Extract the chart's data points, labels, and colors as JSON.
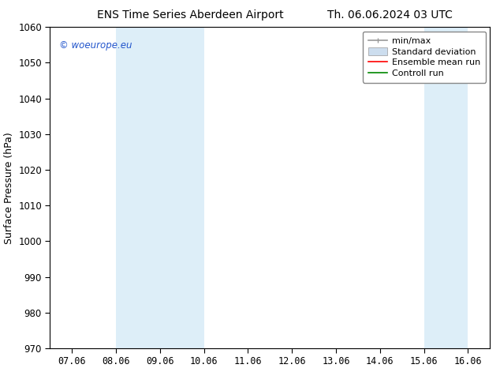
{
  "title_left": "ENS Time Series Aberdeen Airport",
  "title_right": "Th. 06.06.2024 03 UTC",
  "ylabel": "Surface Pressure (hPa)",
  "ylim": [
    970,
    1060
  ],
  "yticks": [
    970,
    980,
    990,
    1000,
    1010,
    1020,
    1030,
    1040,
    1050,
    1060
  ],
  "xtick_labels": [
    "07.06",
    "08.06",
    "09.06",
    "10.06",
    "11.06",
    "12.06",
    "13.06",
    "14.06",
    "15.06",
    "16.06"
  ],
  "xtick_positions": [
    0,
    1,
    2,
    3,
    4,
    5,
    6,
    7,
    8,
    9
  ],
  "shaded_bands": [
    {
      "xmin": 1,
      "xmax": 2,
      "color": "#ddeef8"
    },
    {
      "xmin": 2,
      "xmax": 3,
      "color": "#ddeef8"
    },
    {
      "xmin": 8,
      "xmax": 9,
      "color": "#ddeef8"
    }
  ],
  "watermark": "© woeurope.eu",
  "watermark_color": "#2255cc",
  "background_color": "#ffffff",
  "legend_entries": [
    {
      "label": "min/max",
      "color": "#999999",
      "lw": 1.2,
      "ls": "-",
      "type": "line_caps"
    },
    {
      "label": "Standard deviation",
      "color": "#ccddee",
      "lw": 6,
      "ls": "-",
      "type": "patch"
    },
    {
      "label": "Ensemble mean run",
      "color": "#ff0000",
      "lw": 1.2,
      "ls": "-",
      "type": "line"
    },
    {
      "label": "Controll run",
      "color": "#008800",
      "lw": 1.2,
      "ls": "-",
      "type": "line"
    }
  ],
  "title_fontsize": 10,
  "ylabel_fontsize": 9,
  "tick_fontsize": 8.5,
  "legend_fontsize": 8,
  "xlim": [
    -0.5,
    9.5
  ]
}
